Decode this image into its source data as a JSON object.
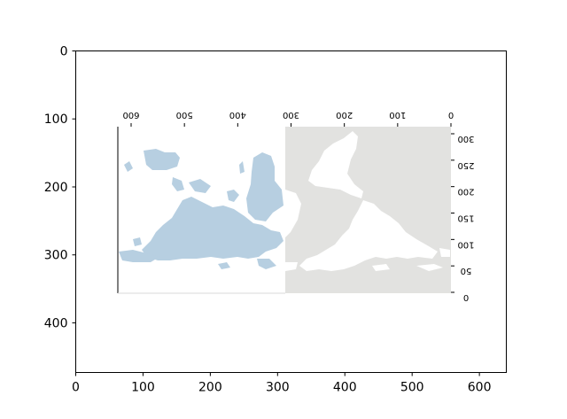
{
  "chart_data": {
    "type": "image",
    "outer_axes": {
      "xlim": [
        0,
        640
      ],
      "ylim_inverted": [
        473,
        0
      ],
      "xticks": [
        0,
        100,
        200,
        300,
        400,
        500,
        600
      ],
      "yticks": [
        0,
        100,
        200,
        300,
        400
      ],
      "xtick_labels": [
        "0",
        "100",
        "200",
        "300",
        "400",
        "500",
        "600"
      ],
      "ytick_labels": [
        "0",
        "100",
        "200",
        "300",
        "400"
      ]
    },
    "inset_image": {
      "description": "upside-down world map; left half colored light blue land on white ocean, right half white land on light gray",
      "extent": [
        63,
        558,
        112,
        361
      ],
      "land_color_left": "#b7cfe1",
      "ocean_color_left": "#ffffff",
      "land_color_right": "#ffffff",
      "ocean_color_right": "#e2e2e0",
      "flipped_xticks": [
        0,
        100,
        200,
        300,
        400,
        500,
        600
      ],
      "flipped_xtick_labels": [
        "0",
        "100",
        "200",
        "300",
        "400",
        "500",
        "600"
      ],
      "flipped_yticks": [
        0,
        50,
        100,
        150,
        200,
        250,
        300
      ],
      "flipped_ytick_labels": [
        "0",
        "50",
        "100",
        "150",
        "200",
        "250",
        "300"
      ]
    }
  }
}
